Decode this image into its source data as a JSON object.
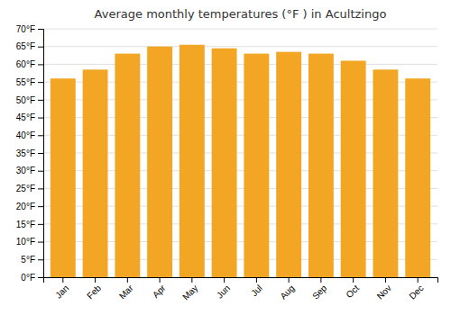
{
  "chart_data": {
    "type": "bar",
    "title": "Average monthly temperatures (°F ) in Acultzingo",
    "categories": [
      "Jan",
      "Feb",
      "Mar",
      "Apr",
      "May",
      "Jun",
      "Jul",
      "Aug",
      "Sep",
      "Oct",
      "Nov",
      "Dec"
    ],
    "values": [
      56,
      58.5,
      63,
      65,
      65.5,
      64.5,
      63,
      63.5,
      63,
      61,
      58.5,
      56
    ],
    "color": "#F2A623",
    "ylim": [
      0,
      70
    ],
    "yticks": [
      {
        "value": 0,
        "label": "0°F"
      },
      {
        "value": 5,
        "label": "5°F"
      },
      {
        "value": 10,
        "label": "10°F"
      },
      {
        "value": 15,
        "label": "15°F"
      },
      {
        "value": 20,
        "label": "20°F"
      },
      {
        "value": 25,
        "label": "25°F"
      },
      {
        "value": 30,
        "label": "30°F"
      },
      {
        "value": 35,
        "label": "35°F"
      },
      {
        "value": 40,
        "label": "40°F"
      },
      {
        "value": 45,
        "label": "45°F"
      },
      {
        "value": 50,
        "label": "50°F"
      },
      {
        "value": 55,
        "label": "55°F"
      },
      {
        "value": 60,
        "label": "60°F"
      },
      {
        "value": 65,
        "label": "65°F"
      },
      {
        "value": 70,
        "label": "70°F"
      }
    ],
    "grid": true
  }
}
